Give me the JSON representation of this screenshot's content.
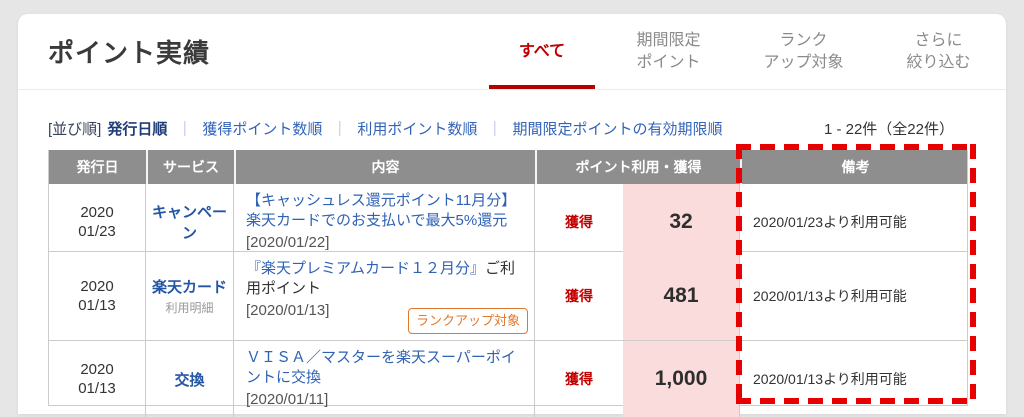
{
  "page": {
    "title": "ポイント実績"
  },
  "tabs": [
    {
      "line1": "すべて",
      "line2": "",
      "active": true
    },
    {
      "line1": "期間限定",
      "line2": "ポイント",
      "active": false
    },
    {
      "line1": "ランク",
      "line2": "アップ対象",
      "active": false
    },
    {
      "line1": "さらに",
      "line2": "絞り込む",
      "active": false
    }
  ],
  "sort": {
    "prefix": "[並び順]",
    "selected": "発行日順",
    "separator": "｜",
    "options": [
      "獲得ポイント数順",
      "利用ポイント数順",
      "期間限定ポイントの有効期限順"
    ]
  },
  "counter": "1 - 22件（全22件）",
  "table": {
    "headers": [
      "発行日",
      "サービス",
      "内容",
      "ポイント利用・獲得",
      "備考"
    ],
    "rows": [
      {
        "date_year": "2020",
        "date_md": "01/23",
        "service": "キャンペーン",
        "service_sub": "",
        "content_link": "【キャッシュレス還元ポイント11月分】楽天カードでのお支払いで最大5%還元",
        "content_plain": "",
        "content_date": "[2020/01/22]",
        "badge": "",
        "type": "獲得",
        "points": "32",
        "note": "2020/01/23より利用可能"
      },
      {
        "date_year": "2020",
        "date_md": "01/13",
        "service": "楽天カード",
        "service_sub": "利用明細",
        "content_link": "『楽天プレミアムカード１２月分』",
        "content_plain": "ご利用ポイント",
        "content_date": "[2020/01/13]",
        "badge": "ランクアップ対象",
        "type": "獲得",
        "points": "481",
        "note": "2020/01/13より利用可能"
      },
      {
        "date_year": "2020",
        "date_md": "01/13",
        "service": "交換",
        "service_sub": "",
        "content_link": "ＶＩＳＡ／マスターを楽天スーパーポイントに交換",
        "content_plain": "",
        "content_date": "[2020/01/11]",
        "badge": "",
        "type": "獲得",
        "points": "1,000",
        "note": "2020/01/13より利用可能"
      }
    ]
  },
  "colors": {
    "accent_red": "#bf0000",
    "annotation_red": "#e60000",
    "link_blue": "#3263b8",
    "service_blue": "#2456a5",
    "selected_sort_navy": "#1e3d77",
    "header_gray": "#8e8e8e",
    "points_pink": "#fbdcdc",
    "badge_orange": "#e0772e",
    "inactive_tab_gray": "#8a8a8a",
    "page_background": "#e6e6e6"
  }
}
